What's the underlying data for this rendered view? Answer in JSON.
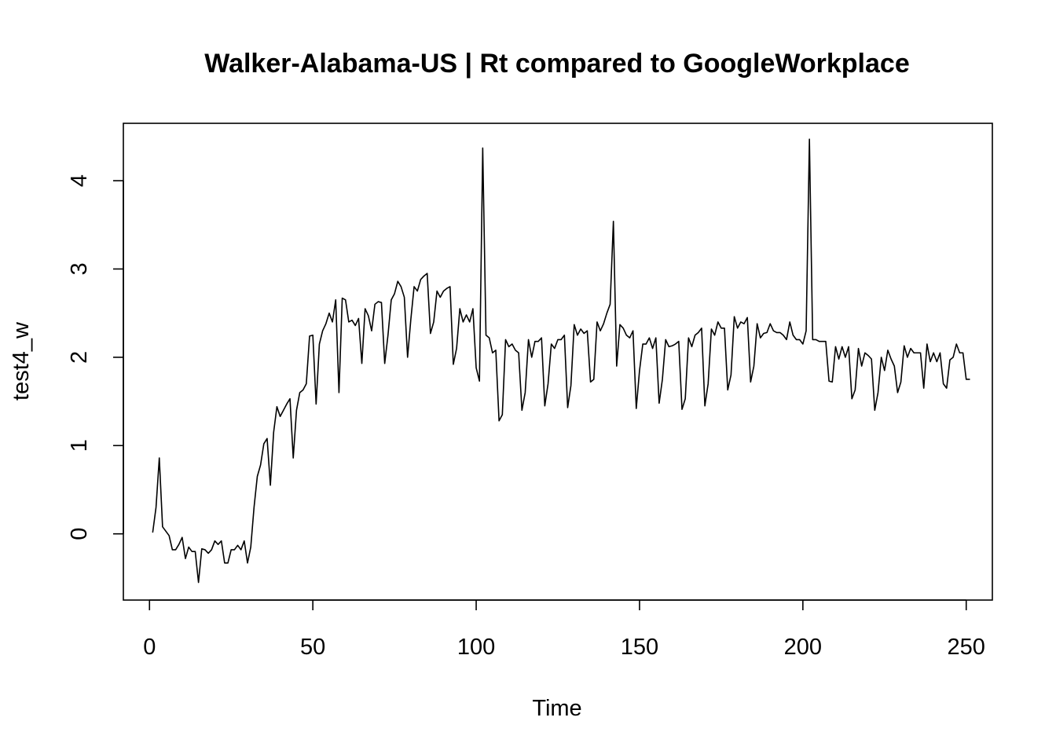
{
  "chart_data": {
    "type": "line",
    "title": "Walker-Alabama-US | Rt compared to GoogleWorkplace",
    "xlabel": "Time",
    "ylabel": "test4_w",
    "xlim": [
      -8,
      258
    ],
    "ylim": [
      -0.75,
      4.65
    ],
    "xticks": [
      0,
      50,
      100,
      150,
      200,
      250
    ],
    "yticks": [
      0,
      1,
      2,
      3,
      4
    ],
    "grid": false,
    "line_color": "#000000",
    "series": [
      {
        "x_start": 1,
        "values": [
          0.02,
          0.3,
          0.86,
          0.08,
          0.03,
          -0.02,
          -0.18,
          -0.18,
          -0.12,
          -0.04,
          -0.28,
          -0.15,
          -0.2,
          -0.2,
          -0.55,
          -0.17,
          -0.18,
          -0.22,
          -0.18,
          -0.08,
          -0.12,
          -0.08,
          -0.33,
          -0.33,
          -0.18,
          -0.18,
          -0.13,
          -0.18,
          -0.08,
          -0.33,
          -0.15,
          0.3,
          0.65,
          0.78,
          1.02,
          1.08,
          0.55,
          1.15,
          1.44,
          1.33,
          1.4,
          1.47,
          1.53,
          0.86,
          1.4,
          1.6,
          1.63,
          1.7,
          2.24,
          2.25,
          1.47,
          2.15,
          2.3,
          2.38,
          2.5,
          2.4,
          2.65,
          1.6,
          2.67,
          2.65,
          2.4,
          2.42,
          2.36,
          2.44,
          1.93,
          2.55,
          2.47,
          2.3,
          2.6,
          2.63,
          2.62,
          1.93,
          2.25,
          2.65,
          2.72,
          2.86,
          2.8,
          2.68,
          2.0,
          2.43,
          2.8,
          2.75,
          2.88,
          2.92,
          2.95,
          2.27,
          2.4,
          2.75,
          2.68,
          2.75,
          2.78,
          2.8,
          1.92,
          2.1,
          2.55,
          2.4,
          2.48,
          2.4,
          2.55,
          1.88,
          1.73,
          4.37,
          2.25,
          2.22,
          2.05,
          2.08,
          1.28,
          1.35,
          2.2,
          2.12,
          2.15,
          2.08,
          2.05,
          1.4,
          1.6,
          2.2,
          2.0,
          2.18,
          2.18,
          2.22,
          1.45,
          1.7,
          2.15,
          2.1,
          2.2,
          2.2,
          2.25,
          1.43,
          1.68,
          2.37,
          2.25,
          2.32,
          2.27,
          2.3,
          1.72,
          1.75,
          2.4,
          2.3,
          2.38,
          2.5,
          2.6,
          3.54,
          1.9,
          2.37,
          2.33,
          2.25,
          2.22,
          2.3,
          1.42,
          1.85,
          2.15,
          2.15,
          2.22,
          2.1,
          2.22,
          1.48,
          1.75,
          2.2,
          2.12,
          2.13,
          2.15,
          2.18,
          1.41,
          1.53,
          2.22,
          2.12,
          2.25,
          2.28,
          2.33,
          1.45,
          1.7,
          2.32,
          2.25,
          2.4,
          2.33,
          2.33,
          1.63,
          1.8,
          2.46,
          2.33,
          2.4,
          2.38,
          2.45,
          1.72,
          1.9,
          2.38,
          2.22,
          2.27,
          2.28,
          2.38,
          2.3,
          2.28,
          2.28,
          2.25,
          2.2,
          2.4,
          2.25,
          2.2,
          2.2,
          2.15,
          2.3,
          4.47,
          2.2,
          2.2,
          2.18,
          2.18,
          2.18,
          1.73,
          1.72,
          2.12,
          1.98,
          2.12,
          2.0,
          2.12,
          1.53,
          1.63,
          2.1,
          1.9,
          2.05,
          2.02,
          1.98,
          1.4,
          1.6,
          2.0,
          1.85,
          2.08,
          1.98,
          1.9,
          1.6,
          1.72,
          2.13,
          2.0,
          2.1,
          2.05,
          2.05,
          2.05,
          1.65,
          2.15,
          1.95,
          2.05,
          1.95,
          2.05,
          1.7,
          1.65,
          1.97,
          2.0,
          2.15,
          2.05,
          2.05,
          1.75,
          1.75
        ]
      }
    ]
  }
}
